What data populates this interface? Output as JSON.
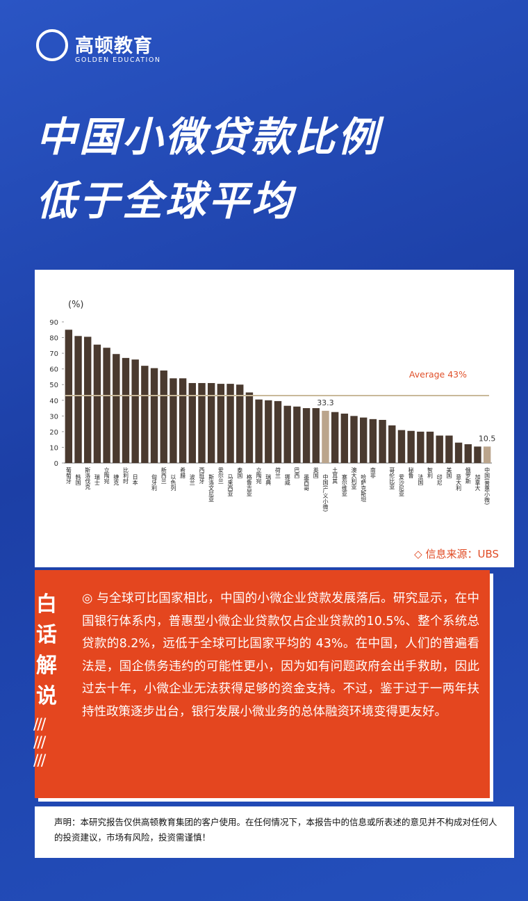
{
  "logo": {
    "name": "高顿教育",
    "subtitle": "GOLDEN EDUCATION"
  },
  "headline": [
    "中国小微贷款比例",
    "低于全球平均"
  ],
  "chart_data": {
    "type": "bar",
    "y_label": "(%)",
    "categories": [
      "葡萄牙",
      "韩国",
      "斯洛伐克",
      "瑞士",
      "立陶宛",
      "捷克",
      "比利时",
      "日本",
      null,
      "匈牙利",
      "新西兰",
      "以色列",
      "希腊",
      "波兰",
      "西班牙",
      "斯洛文尼亚",
      "爱尔兰",
      "马来西亚",
      "泰国",
      "格鲁吉亚",
      "立陶宛",
      "瑞典",
      "荷兰",
      "挪威",
      "巴西",
      "墨西哥",
      "英国",
      "中国(广义小微)",
      "土耳其",
      "塞尔维亚",
      "澳大利亚",
      "哈萨克斯坦",
      "南非",
      null,
      "哥伦比亚",
      "爱沙尼亚",
      "秘鲁",
      "法国",
      "智利",
      "印尼",
      "美国",
      "意大利",
      "俄罗斯",
      "加拿大",
      "中国(普惠小微)"
    ],
    "values": [
      85,
      81,
      80.5,
      75.5,
      73.5,
      69.5,
      67,
      66,
      62,
      60.5,
      59,
      54,
      54,
      51,
      51,
      51,
      50.5,
      50.5,
      50,
      45,
      40.5,
      40,
      39.5,
      36.5,
      36,
      35,
      35,
      33.3,
      32.5,
      31.5,
      30,
      29,
      28,
      27.5,
      24,
      21,
      20.5,
      20,
      20,
      17.5,
      17.5,
      13,
      12,
      10.5,
      10.5
    ],
    "value_labels": [
      null,
      null,
      null,
      null,
      null,
      null,
      null,
      null,
      null,
      null,
      null,
      null,
      null,
      null,
      null,
      null,
      null,
      null,
      null,
      null,
      null,
      null,
      null,
      null,
      null,
      null,
      null,
      "33.3",
      null,
      null,
      null,
      null,
      null,
      null,
      null,
      null,
      null,
      null,
      null,
      null,
      null,
      null,
      null,
      null,
      "10.5"
    ],
    "colors": [
      "#4a3a2f",
      "#4a3a2f",
      "#4a3a2f",
      "#4a3a2f",
      "#4a3a2f",
      "#4a3a2f",
      "#4a3a2f",
      "#4a3a2f",
      "#4a3a2f",
      "#4a3a2f",
      "#4a3a2f",
      "#4a3a2f",
      "#4a3a2f",
      "#4a3a2f",
      "#4a3a2f",
      "#4a3a2f",
      "#4a3a2f",
      "#4a3a2f",
      "#4a3a2f",
      "#4a3a2f",
      "#4a3a2f",
      "#4a3a2f",
      "#4a3a2f",
      "#4a3a2f",
      "#4a3a2f",
      "#4a3a2f",
      "#4a3a2f",
      "#bba58c",
      "#4a3a2f",
      "#4a3a2f",
      "#4a3a2f",
      "#4a3a2f",
      "#4a3a2f",
      "#4a3a2f",
      "#4a3a2f",
      "#4a3a2f",
      "#4a3a2f",
      "#4a3a2f",
      "#4a3a2f",
      "#4a3a2f",
      "#4a3a2f",
      "#4a3a2f",
      "#4a3a2f",
      "#4a3a2f",
      "#bba58c"
    ],
    "average": {
      "value": 43,
      "label": "Average 43%",
      "color": "#c9b99a"
    },
    "ylim": [
      0,
      90
    ],
    "yticks": [
      0,
      10,
      20,
      30,
      40,
      50,
      60,
      70,
      80,
      90
    ]
  },
  "source": "◇ 信息来源：UBS",
  "explain": {
    "title": "白话解说",
    "text": "◎ 与全球可比国家相比，中国的小微企业贷款发展落后。研究显示，在中国银行体系内，普惠型小微企业贷款仅占企业贷款的10.5%、整个系统总贷款的8.2%，远低于全球可比国家平均的 43%。在中国，人们的普遍看法是，国企债务违约的可能性更小，因为如有问题政府会出手救助，因此过去十年，小微企业无法获得足够的资金支持。不过，鉴于过于一两年扶持性政策逐步出台，银行发展小微业务的总体融资环境变得更友好。"
  },
  "disclaimer": "声明：本研究报告仅供高顿教育集团的客户使用。在任何情况下，本报告中的信息或所表述的意见并不构成对任何人的投资建议，市场有风险，投资需谨慎！"
}
